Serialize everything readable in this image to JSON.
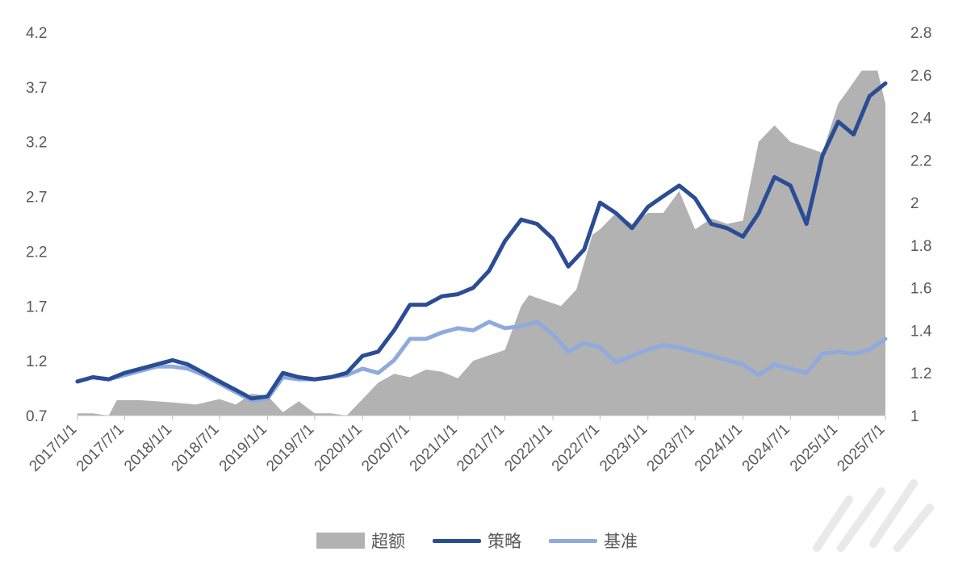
{
  "chart_data": {
    "type": "line",
    "x_ticks": [
      "2017/1/1",
      "2017/7/1",
      "2018/1/1",
      "2018/7/1",
      "2019/1/1",
      "2019/7/1",
      "2020/1/1",
      "2020/7/1",
      "2021/1/1",
      "2021/7/1",
      "2022/1/1",
      "2022/7/1",
      "2023/1/1",
      "2023/7/1",
      "2024/1/1",
      "2024/7/1",
      "2025/1/1",
      "2025/7/1"
    ],
    "left_axis": {
      "ticks": [
        "0.7",
        "1.2",
        "1.7",
        "2.2",
        "2.7",
        "3.2",
        "3.7",
        "4.2"
      ],
      "range": [
        0.7,
        4.2
      ]
    },
    "right_axis": {
      "ticks": [
        "1",
        "1.2",
        "1.4",
        "1.6",
        "1.8",
        "2",
        "2.2",
        "2.4",
        "2.6",
        "2.8"
      ],
      "range": [
        1.0,
        2.8
      ]
    },
    "grid": false,
    "legend_position": "bottom",
    "series": [
      {
        "name": "超额",
        "type": "area",
        "axis": "left",
        "color": "#b2b2b2",
        "x": [
          "2017/1/1",
          "2017/3/1",
          "2017/5/1",
          "2017/6/1",
          "2017/9/1",
          "2017/11/1",
          "2018/1/1",
          "2018/4/1",
          "2018/7/1",
          "2018/9/1",
          "2018/11/1",
          "2019/1/1",
          "2019/3/1",
          "2019/5/1",
          "2019/7/1",
          "2019/9/1",
          "2019/11/1",
          "2020/1/1",
          "2020/3/1",
          "2020/5/1",
          "2020/7/1",
          "2020/9/1",
          "2020/11/1",
          "2021/1/1",
          "2021/3/1",
          "2021/5/1",
          "2021/7/1",
          "2021/9/1",
          "2021/10/1",
          "2021/12/1",
          "2022/2/1",
          "2022/4/1",
          "2022/6/1",
          "2022/7/1",
          "2022/9/1",
          "2022/11/1",
          "2023/1/1",
          "2023/3/1",
          "2023/5/1",
          "2023/7/1",
          "2023/9/1",
          "2023/11/1",
          "2024/1/1",
          "2024/3/1",
          "2024/5/1",
          "2024/7/1",
          "2024/9/1",
          "2024/11/1",
          "2025/1/1",
          "2025/2/1",
          "2025/4/1",
          "2025/6/1",
          "2025/7/1"
        ],
        "values": [
          0.72,
          0.72,
          0.7,
          0.84,
          0.84,
          0.83,
          0.82,
          0.8,
          0.85,
          0.8,
          0.9,
          0.88,
          0.73,
          0.83,
          0.72,
          0.72,
          0.7,
          0.85,
          1.0,
          1.08,
          1.05,
          1.12,
          1.1,
          1.04,
          1.2,
          1.25,
          1.3,
          1.7,
          1.8,
          1.75,
          1.7,
          1.85,
          2.35,
          2.4,
          2.55,
          2.45,
          2.55,
          2.55,
          2.75,
          2.4,
          2.5,
          2.45,
          2.48,
          3.2,
          3.35,
          3.2,
          3.15,
          3.1,
          3.55,
          3.65,
          3.85,
          3.85,
          3.55
        ]
      },
      {
        "name": "策略",
        "type": "line",
        "axis": "right",
        "color": "#2a4d94",
        "x": [
          "2017/1/1",
          "2017/3/1",
          "2017/5/1",
          "2017/7/1",
          "2017/9/1",
          "2017/11/1",
          "2018/1/1",
          "2018/3/1",
          "2018/5/1",
          "2018/7/1",
          "2018/9/1",
          "2018/11/1",
          "2019/1/1",
          "2019/3/1",
          "2019/5/1",
          "2019/7/1",
          "2019/9/1",
          "2019/11/1",
          "2020/1/1",
          "2020/3/1",
          "2020/5/1",
          "2020/7/1",
          "2020/9/1",
          "2020/11/1",
          "2021/1/1",
          "2021/3/1",
          "2021/5/1",
          "2021/7/1",
          "2021/9/1",
          "2021/11/1",
          "2022/1/1",
          "2022/3/1",
          "2022/5/1",
          "2022/7/1",
          "2022/9/1",
          "2022/11/1",
          "2023/1/1",
          "2023/3/1",
          "2023/5/1",
          "2023/7/1",
          "2023/9/1",
          "2023/11/1",
          "2024/1/1",
          "2024/3/1",
          "2024/5/1",
          "2024/7/1",
          "2024/9/1",
          "2024/11/1",
          "2025/1/1",
          "2025/3/1",
          "2025/5/1",
          "2025/7/1"
        ],
        "values": [
          1.16,
          1.18,
          1.17,
          1.2,
          1.22,
          1.24,
          1.26,
          1.24,
          1.2,
          1.16,
          1.12,
          1.08,
          1.09,
          1.2,
          1.18,
          1.17,
          1.18,
          1.2,
          1.28,
          1.3,
          1.4,
          1.52,
          1.52,
          1.56,
          1.57,
          1.6,
          1.68,
          1.82,
          1.92,
          1.9,
          1.83,
          1.7,
          1.78,
          2.0,
          1.95,
          1.88,
          1.98,
          2.03,
          2.08,
          2.02,
          1.9,
          1.88,
          1.84,
          1.95,
          2.12,
          2.08,
          1.9,
          2.22,
          2.38,
          2.32,
          2.5,
          2.56
        ]
      },
      {
        "name": "基准",
        "type": "line",
        "axis": "right",
        "color": "#8faadc",
        "x": [
          "2017/1/1",
          "2017/3/1",
          "2017/5/1",
          "2017/7/1",
          "2017/9/1",
          "2017/11/1",
          "2018/1/1",
          "2018/3/1",
          "2018/5/1",
          "2018/7/1",
          "2018/9/1",
          "2018/11/1",
          "2019/1/1",
          "2019/3/1",
          "2019/5/1",
          "2019/7/1",
          "2019/9/1",
          "2019/11/1",
          "2020/1/1",
          "2020/3/1",
          "2020/5/1",
          "2020/7/1",
          "2020/9/1",
          "2020/11/1",
          "2021/1/1",
          "2021/3/1",
          "2021/5/1",
          "2021/7/1",
          "2021/9/1",
          "2021/11/1",
          "2022/1/1",
          "2022/3/1",
          "2022/5/1",
          "2022/7/1",
          "2022/9/1",
          "2022/11/1",
          "2023/1/1",
          "2023/3/1",
          "2023/5/1",
          "2023/7/1",
          "2023/9/1",
          "2023/11/1",
          "2024/1/1",
          "2024/3/1",
          "2024/5/1",
          "2024/7/1",
          "2024/9/1",
          "2024/11/1",
          "2025/1/1",
          "2025/3/1",
          "2025/5/1",
          "2025/7/1"
        ],
        "values": [
          1.16,
          1.18,
          1.17,
          1.19,
          1.21,
          1.23,
          1.23,
          1.22,
          1.19,
          1.15,
          1.11,
          1.07,
          1.08,
          1.18,
          1.17,
          1.17,
          1.18,
          1.19,
          1.22,
          1.2,
          1.26,
          1.36,
          1.36,
          1.39,
          1.41,
          1.4,
          1.44,
          1.41,
          1.42,
          1.44,
          1.38,
          1.3,
          1.34,
          1.32,
          1.25,
          1.28,
          1.31,
          1.33,
          1.32,
          1.3,
          1.28,
          1.26,
          1.24,
          1.19,
          1.24,
          1.22,
          1.2,
          1.29,
          1.3,
          1.29,
          1.31,
          1.36
        ]
      }
    ]
  },
  "legend": {
    "excess": "超额",
    "strategy": "策略",
    "benchmark": "基准"
  }
}
